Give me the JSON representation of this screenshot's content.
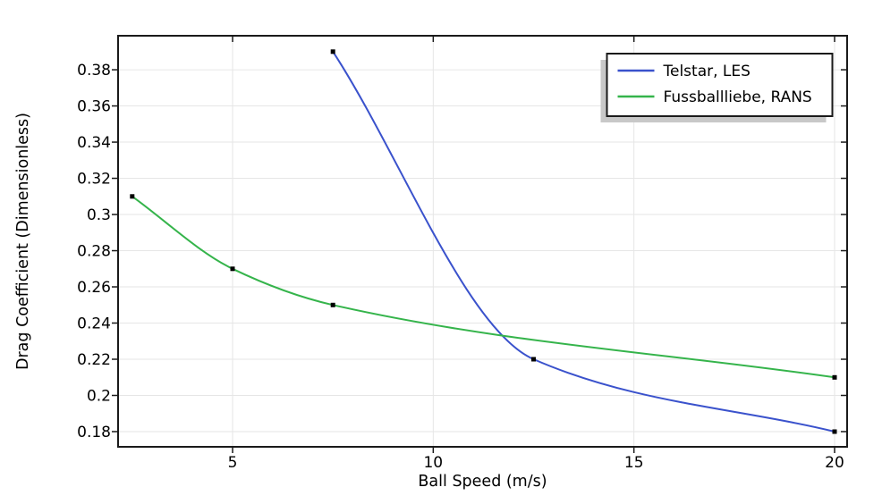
{
  "figure": {
    "background": "#ffffff"
  },
  "chart_data": {
    "type": "line",
    "title": "",
    "xlabel": "Ball Speed (m/s)",
    "ylabel": "Drag Coefficient (Dimensionless)",
    "xlim": [
      2.147,
      20.312
    ],
    "ylim": [
      0.1716,
      0.3988
    ],
    "x_ticks": [
      5,
      10,
      15,
      20
    ],
    "x_tick_labels": [
      "5",
      "10",
      "15",
      "20"
    ],
    "y_ticks": [
      0.38,
      0.36,
      0.34,
      0.32,
      0.3,
      0.28,
      0.26,
      0.24,
      0.22,
      0.2,
      0.18
    ],
    "y_tick_labels": [
      "0.38",
      "0.36",
      "0.34",
      "0.32",
      "0.3",
      "0.28",
      "0.26",
      "0.24",
      "0.22",
      "0.2",
      "0.18"
    ],
    "grid": true,
    "legend": {
      "position": "top-right",
      "entries": [
        "Telstar, LES",
        "Fussballliebe, RANS"
      ]
    },
    "series": [
      {
        "name": "Telstar, LES",
        "color": "#3a52cc",
        "interpolation": "monotone-cubic",
        "marker": "square",
        "marker_color": "#000000",
        "x": [
          7.5,
          12.5,
          20
        ],
        "y": [
          0.39,
          0.22,
          0.18
        ]
      },
      {
        "name": "Fussballliebe, RANS",
        "color": "#35b44b",
        "interpolation": "monotone-cubic",
        "marker": "square",
        "marker_color": "#000000",
        "x": [
          2.5,
          5,
          7.5,
          20
        ],
        "y": [
          0.31,
          0.27,
          0.25,
          0.21
        ]
      }
    ],
    "colors": {
      "frame": "#1a1a1a",
      "grid": "#e6e6e6",
      "tick": "#1a1a1a",
      "text": "#000000",
      "legend_border": "#1a1a1a",
      "legend_fill": "#ffffff",
      "legend_shadow": "#c8c8c8"
    }
  }
}
